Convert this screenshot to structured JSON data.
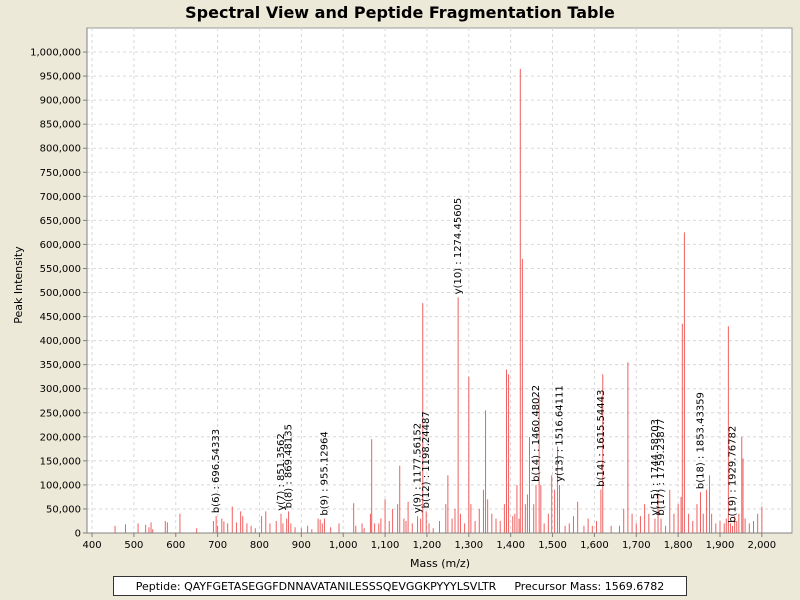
{
  "info": {
    "peptide_label": "Peptide:",
    "peptide": "QAYFGETASEGGFDNNAVATANILESSSQEVGGKPYYYLSVLTR",
    "precursor_label": "Precursor Mass:",
    "precursor_mass": "1569.6782"
  },
  "colors": {
    "peak": "#f06060",
    "grid": "#d8d8d8",
    "axis": "#808080"
  },
  "chart_data": {
    "type": "bar",
    "title": "Spectral View and Peptide Fragmentation Table",
    "xlabel": "Mass (m/z)",
    "ylabel": "Peak Intensity",
    "xlim": [
      388,
      2072
    ],
    "ylim": [
      0,
      1050000
    ],
    "xticks": [
      400,
      500,
      600,
      700,
      800,
      900,
      1000,
      1100,
      1200,
      1300,
      1400,
      1500,
      1600,
      1700,
      1800,
      1900,
      2000
    ],
    "xtick_labels": [
      "400",
      "500",
      "600",
      "700",
      "800",
      "900",
      "1,000",
      "1,100",
      "1,200",
      "1,300",
      "1,400",
      "1,500",
      "1,600",
      "1,700",
      "1,800",
      "1,900",
      "2,000"
    ],
    "yticks": [
      0,
      50000,
      100000,
      150000,
      200000,
      250000,
      300000,
      350000,
      400000,
      450000,
      500000,
      550000,
      600000,
      650000,
      700000,
      750000,
      800000,
      850000,
      900000,
      950000,
      1000000
    ],
    "ytick_labels": [
      "0",
      "50,000",
      "100,000",
      "150,000",
      "200,000",
      "250,000",
      "300,000",
      "350,000",
      "400,000",
      "450,000",
      "500,000",
      "550,000",
      "600,000",
      "650,000",
      "700,000",
      "750,000",
      "800,000",
      "850,000",
      "900,000",
      "950,000",
      "1,000,000"
    ],
    "grid": true,
    "peaks": [
      [
        455,
        15000
      ],
      [
        480,
        18000
      ],
      [
        510,
        20000
      ],
      [
        528,
        17000
      ],
      [
        536,
        12000
      ],
      [
        541,
        22000
      ],
      [
        545,
        8000
      ],
      [
        575,
        25000
      ],
      [
        580,
        22000
      ],
      [
        610,
        40000
      ],
      [
        650,
        10000
      ],
      [
        690,
        25000
      ],
      [
        696.5,
        35000
      ],
      [
        700,
        15000
      ],
      [
        710,
        30000
      ],
      [
        715,
        24000
      ],
      [
        724,
        20000
      ],
      [
        735,
        55000
      ],
      [
        745,
        22000
      ],
      [
        755,
        45000
      ],
      [
        760,
        35000
      ],
      [
        770,
        20000
      ],
      [
        780,
        15000
      ],
      [
        790,
        10000
      ],
      [
        805,
        35000
      ],
      [
        815,
        45000
      ],
      [
        825,
        20000
      ],
      [
        840,
        25000
      ],
      [
        851.4,
        40000
      ],
      [
        856,
        20000
      ],
      [
        865,
        30000
      ],
      [
        869.5,
        45000
      ],
      [
        875,
        20000
      ],
      [
        885,
        12000
      ],
      [
        900,
        10000
      ],
      [
        915,
        15000
      ],
      [
        925,
        8000
      ],
      [
        940,
        30000
      ],
      [
        945,
        28000
      ],
      [
        950,
        20000
      ],
      [
        955.1,
        30000
      ],
      [
        970,
        12000
      ],
      [
        990,
        20000
      ],
      [
        1025,
        62000
      ],
      [
        1030,
        15000
      ],
      [
        1045,
        20000
      ],
      [
        1050,
        10000
      ],
      [
        1065,
        40000
      ],
      [
        1068,
        195000
      ],
      [
        1075,
        20000
      ],
      [
        1085,
        20000
      ],
      [
        1090,
        30000
      ],
      [
        1100,
        70000
      ],
      [
        1110,
        25000
      ],
      [
        1118,
        50000
      ],
      [
        1130,
        60000
      ],
      [
        1135,
        140000
      ],
      [
        1145,
        30000
      ],
      [
        1150,
        25000
      ],
      [
        1155,
        65000
      ],
      [
        1165,
        20000
      ],
      [
        1177.6,
        35000
      ],
      [
        1185,
        30000
      ],
      [
        1190,
        478000
      ],
      [
        1198.2,
        45000
      ],
      [
        1205,
        20000
      ],
      [
        1215,
        10000
      ],
      [
        1230,
        25000
      ],
      [
        1245,
        60000
      ],
      [
        1250,
        120000
      ],
      [
        1260,
        30000
      ],
      [
        1267,
        50000
      ],
      [
        1274.5,
        490000
      ],
      [
        1280,
        40000
      ],
      [
        1290,
        20000
      ],
      [
        1300,
        325000
      ],
      [
        1305,
        60000
      ],
      [
        1315,
        25000
      ],
      [
        1325,
        50000
      ],
      [
        1335,
        90000
      ],
      [
        1340,
        255000
      ],
      [
        1345,
        70000
      ],
      [
        1355,
        40000
      ],
      [
        1365,
        30000
      ],
      [
        1375,
        25000
      ],
      [
        1385,
        60000
      ],
      [
        1390,
        340000
      ],
      [
        1395,
        330000
      ],
      [
        1405,
        35000
      ],
      [
        1410,
        40000
      ],
      [
        1415,
        100000
      ],
      [
        1420,
        30000
      ],
      [
        1423,
        965000
      ],
      [
        1428,
        570000
      ],
      [
        1435,
        60000
      ],
      [
        1440,
        80000
      ],
      [
        1445,
        200000
      ],
      [
        1455,
        60000
      ],
      [
        1460.5,
        100000
      ],
      [
        1468,
        285000
      ],
      [
        1472,
        100000
      ],
      [
        1480,
        20000
      ],
      [
        1490,
        40000
      ],
      [
        1498,
        120000
      ],
      [
        1505,
        90000
      ],
      [
        1512,
        180000
      ],
      [
        1516.6,
        100000
      ],
      [
        1530,
        15000
      ],
      [
        1540,
        20000
      ],
      [
        1550,
        35000
      ],
      [
        1560,
        65000
      ],
      [
        1575,
        15000
      ],
      [
        1585,
        30000
      ],
      [
        1595,
        15000
      ],
      [
        1605,
        25000
      ],
      [
        1615.5,
        90000
      ],
      [
        1620,
        330000
      ],
      [
        1640,
        15000
      ],
      [
        1660,
        15000
      ],
      [
        1670,
        50000
      ],
      [
        1680,
        355000
      ],
      [
        1690,
        40000
      ],
      [
        1700,
        20000
      ],
      [
        1710,
        35000
      ],
      [
        1720,
        60000
      ],
      [
        1730,
        40000
      ],
      [
        1744.6,
        30000
      ],
      [
        1752,
        80000
      ],
      [
        1759.2,
        30000
      ],
      [
        1770,
        15000
      ],
      [
        1780,
        90000
      ],
      [
        1790,
        40000
      ],
      [
        1800,
        60000
      ],
      [
        1807,
        75000
      ],
      [
        1810,
        435000
      ],
      [
        1815,
        625000
      ],
      [
        1825,
        40000
      ],
      [
        1835,
        25000
      ],
      [
        1845,
        60000
      ],
      [
        1853.4,
        85000
      ],
      [
        1860,
        40000
      ],
      [
        1868,
        90000
      ],
      [
        1875,
        120000
      ],
      [
        1880,
        40000
      ],
      [
        1890,
        20000
      ],
      [
        1900,
        25000
      ],
      [
        1910,
        20000
      ],
      [
        1915,
        30000
      ],
      [
        1920,
        430000
      ],
      [
        1925,
        20000
      ],
      [
        1929.8,
        15000
      ],
      [
        1935,
        35000
      ],
      [
        1940,
        25000
      ],
      [
        1945,
        40000
      ],
      [
        1952,
        200000
      ],
      [
        1955,
        155000
      ],
      [
        1960,
        30000
      ],
      [
        1970,
        20000
      ],
      [
        1980,
        25000
      ],
      [
        1990,
        40000
      ],
      [
        2000,
        55000
      ]
    ],
    "annotations": [
      {
        "mz": 696.54333,
        "intensity": 35000,
        "label": "b(6) : 696.54333"
      },
      {
        "mz": 851.3562,
        "intensity": 40000,
        "label": "y(7) : 851.3562"
      },
      {
        "mz": 869.48135,
        "intensity": 45000,
        "label": "b(8) : 869.48135"
      },
      {
        "mz": 955.12964,
        "intensity": 30000,
        "label": "b(9) : 955.12964"
      },
      {
        "mz": 1177.56152,
        "intensity": 35000,
        "label": "y(9) : 1177.56152"
      },
      {
        "mz": 1198.24487,
        "intensity": 45000,
        "label": "b(12) : 1198.24487"
      },
      {
        "mz": 1274.45605,
        "intensity": 490000,
        "label": "y(10) : 1274.45605"
      },
      {
        "mz": 1460.48022,
        "intensity": 100000,
        "label": "b(14) : 1460.48022"
      },
      {
        "mz": 1516.64111,
        "intensity": 100000,
        "label": "y(13) : 1516.64111"
      },
      {
        "mz": 1615.54443,
        "intensity": 90000,
        "label": "b(14) : 1615.54443"
      },
      {
        "mz": 1744.58203,
        "intensity": 30000,
        "label": "y(15) : 1744.58203"
      },
      {
        "mz": 1759.23877,
        "intensity": 30000,
        "label": "b(17) : 1759.23877"
      },
      {
        "mz": 1853.43359,
        "intensity": 85000,
        "label": "b(18) : 1853.43359"
      },
      {
        "mz": 1929.76782,
        "intensity": 15000,
        "label": "b(19) : 1929.76782"
      }
    ]
  }
}
